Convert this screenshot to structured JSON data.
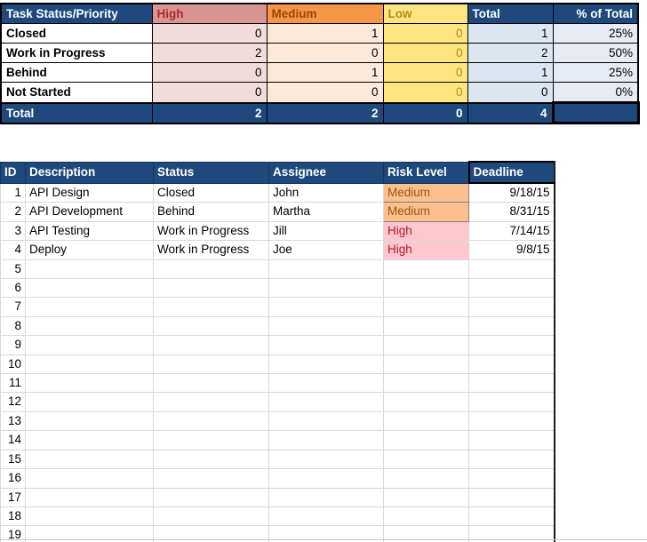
{
  "colors": {
    "header_navy": "#1F497D",
    "high_header_bg": "#D99594",
    "high_text": "#A92A2F",
    "high_cell_bg": "#F2DCDB",
    "medium_header_bg": "#F79646",
    "medium_text": "#964807",
    "medium_cell_bg": "#FDE9D9",
    "low_bg": "#FFE47F",
    "low_text": "#AD8A1D",
    "total_cell_bg": "#DCE6F1",
    "pct_cell_bg": "#E7ECF4",
    "risk_high_bg": "#FFC7CE",
    "risk_high_text": "#AE1C28",
    "risk_medium_bg": "#FAC090",
    "risk_medium_text": "#9C5708",
    "grid_line": "#D8D8D8"
  },
  "summary": {
    "corner_label": "Task Status/Priority",
    "columns": [
      "High",
      "Medium",
      "Low",
      "Total",
      "% of Total"
    ],
    "rows": [
      {
        "label": "Closed",
        "high": "0",
        "medium": "1",
        "low": "0",
        "total": "1",
        "pct": "25%"
      },
      {
        "label": "Work in Progress",
        "high": "2",
        "medium": "0",
        "low": "0",
        "total": "2",
        "pct": "50%"
      },
      {
        "label": "Behind",
        "high": "0",
        "medium": "1",
        "low": "0",
        "total": "1",
        "pct": "25%"
      },
      {
        "label": "Not Started",
        "high": "0",
        "medium": "0",
        "low": "0",
        "total": "0",
        "pct": "0%"
      }
    ],
    "total_row": {
      "label": "Total",
      "high": "2",
      "medium": "2",
      "low": "0",
      "total": "4",
      "pct": ""
    }
  },
  "tasks": {
    "columns": [
      "ID",
      "Description",
      "Status",
      "Assignee",
      "Risk Level",
      "Deadline"
    ],
    "rows": [
      {
        "id": "1",
        "description": "API Design",
        "status": "Closed",
        "assignee": "John",
        "risk": "Medium",
        "deadline": "9/18/15"
      },
      {
        "id": "2",
        "description": "API Development",
        "status": "Behind",
        "assignee": "Martha",
        "risk": "Medium",
        "deadline": "8/31/15"
      },
      {
        "id": "3",
        "description": "API Testing",
        "status": "Work in Progress",
        "assignee": "Jill",
        "risk": "High",
        "deadline": "7/14/15"
      },
      {
        "id": "4",
        "description": "Deploy",
        "status": "Work in Progress",
        "assignee": "Joe",
        "risk": "High",
        "deadline": "9/8/15"
      }
    ],
    "empty_rows_from": 5,
    "empty_rows_to": 19
  }
}
